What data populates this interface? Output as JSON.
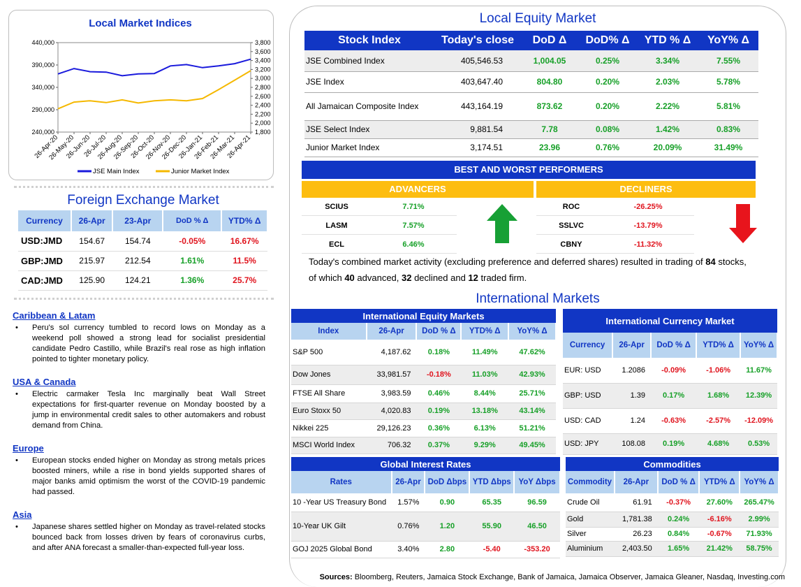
{
  "chart_data": {
    "type": "line",
    "title": "Local Market Indices",
    "x_ticks": [
      "26-Apr-20",
      "26-May-20",
      "26-Jun-20",
      "26-Jul-20",
      "26-Aug-20",
      "26-Sep-20",
      "26-Oct-20",
      "26-Nov-20",
      "26-Dec-20",
      "26-Jan-21",
      "26-Feb-21",
      "26-Mar-21",
      "26-Apr-21"
    ],
    "y_left_ticks": [
      "440,000",
      "390,000",
      "340,000",
      "290,000",
      "240,000"
    ],
    "y_left_range": [
      240000,
      440000
    ],
    "y_right_ticks": [
      "3,800",
      "3,600",
      "3,400",
      "3,200",
      "3,000",
      "2,800",
      "2,600",
      "2,400",
      "2,200",
      "2,000",
      "1,800"
    ],
    "y_right_range": [
      1800,
      3800
    ],
    "legend_position": "bottom",
    "series": [
      {
        "name": "JSE Main Index",
        "axis": "left",
        "color": "#1a1adc",
        "values": [
          370000,
          382000,
          375000,
          374000,
          366000,
          370000,
          371000,
          388000,
          391000,
          384000,
          388000,
          393000,
          403000
        ]
      },
      {
        "name": "Junior Market Index",
        "axis": "right",
        "color": "#f5b800",
        "values": [
          2320,
          2470,
          2500,
          2460,
          2520,
          2450,
          2500,
          2520,
          2500,
          2550,
          2750,
          2960,
          3174
        ]
      }
    ]
  },
  "fx": {
    "title": "Foreign Exchange Market",
    "headers": [
      "Currency",
      "26-Apr",
      "23-Apr",
      "DoD % Δ",
      "YTD% Δ"
    ],
    "rows": [
      {
        "cur": "USD:JMD",
        "a": "154.67",
        "b": "154.74",
        "dod": "-0.05%",
        "ytd": "16.67%"
      },
      {
        "cur": "GBP:JMD",
        "a": "215.97",
        "b": "212.54",
        "dod": "1.61%",
        "ytd": "11.5%"
      },
      {
        "cur": "CAD:JMD",
        "a": "125.90",
        "b": "124.21",
        "dod": "1.36%",
        "ytd": "25.7%"
      }
    ]
  },
  "news": [
    {
      "heading": "Caribbean & Latam",
      "bullet": "•",
      "text": "Peru's sol currency tumbled to record lows on Monday as a weekend poll showed a strong lead for socialist presidential candidate Pedro Castillo, while Brazil's real rose as high inflation pointed to tighter monetary policy."
    },
    {
      "heading": "USA & Canada",
      "bullet": "•",
      "text": "Electric carmaker Tesla Inc marginally beat Wall Street expectations for first-quarter revenue on Monday boosted by a jump in environmental credit sales to other automakers and robust demand from China."
    },
    {
      "heading": "Europe",
      "bullet": "•",
      "text": "European stocks ended higher on Monday as strong metals prices boosted miners, while a rise in bond yields supported shares of major banks amid optimism the worst of the COVID-19 pandemic had passed."
    },
    {
      "heading": "Asia",
      "bullet": "•",
      "text": "Japanese shares settled higher on Monday as travel-related stocks bounced back from losses driven by fears of coronavirus curbs, and after ANA forecast a smaller-than-expected full-year loss."
    }
  ],
  "local_equity": {
    "title": "Local Equity Market",
    "headers": [
      "Stock Index",
      "Today's close",
      "DoD  Δ",
      "DoD% Δ",
      "YTD % Δ",
      "YoY% Δ"
    ],
    "rows": [
      {
        "name": "JSE Combined Index",
        "close": "405,546.53",
        "dod": "1,004.05",
        "dodp": "0.25%",
        "ytd": "3.34%",
        "yoy": "7.55%"
      },
      {
        "name": "JSE Index",
        "close": "403,647.40",
        "dod": "804.80",
        "dodp": "0.20%",
        "ytd": "2.03%",
        "yoy": "5.78%"
      },
      {
        "name": "All Jamaican Composite Index",
        "close": "443,164.19",
        "dod": "873.62",
        "dodp": "0.20%",
        "ytd": "2.22%",
        "yoy": "5.81%"
      },
      {
        "name": "JSE Select Index",
        "close": "9,881.54",
        "dod": "7.78",
        "dodp": "0.08%",
        "ytd": "1.42%",
        "yoy": "0.83%"
      },
      {
        "name": "Junior Market Index",
        "close": "3,174.51",
        "dod": "23.96",
        "dodp": "0.76%",
        "ytd": "20.09%",
        "yoy": "31.49%"
      }
    ]
  },
  "performers": {
    "title": "BEST AND WORST PERFORMERS",
    "advancers_label": "ADVANCERS",
    "decliners_label": "DECLINERS",
    "advancers": [
      {
        "sym": "SCIUS",
        "pct": "7.71%"
      },
      {
        "sym": "LASM",
        "pct": "7.57%"
      },
      {
        "sym": "ECL",
        "pct": "6.46%"
      }
    ],
    "decliners": [
      {
        "sym": "ROC",
        "pct": "-26.25%"
      },
      {
        "sym": "SSLVC",
        "pct": "-13.79%"
      },
      {
        "sym": "CBNY",
        "pct": "-11.32%"
      }
    ],
    "up_color": "#17a035",
    "down_color": "#e8141c"
  },
  "summary": {
    "t1": "Today's combined market activity (excluding preference and deferred shares) resulted in trading of ",
    "n1": "84",
    "t2": " stocks, of which ",
    "n2": "40",
    "t3": " advanced, ",
    "n3": "32",
    "t4": " declined and ",
    "n4": "12",
    "t5": " traded firm."
  },
  "intl_title": "International Markets",
  "intl_equity": {
    "title": "International Equity Markets",
    "headers": [
      "Index",
      "26-Apr",
      "DoD % Δ",
      "YTD% Δ",
      "YoY% Δ"
    ],
    "rows": [
      {
        "name": "S&P 500",
        "v": "4,187.62",
        "dod": "0.18%",
        "ytd": "11.49%",
        "yoy": "47.62%"
      },
      {
        "name": "Dow Jones",
        "v": "33,981.57",
        "dod": "-0.18%",
        "ytd": "11.03%",
        "yoy": "42.93%"
      },
      {
        "name": "FTSE All Share",
        "v": "3,983.59",
        "dod": "0.46%",
        "ytd": "8.44%",
        "yoy": "25.71%"
      },
      {
        "name": "Euro Stoxx 50",
        "v": "4,020.83",
        "dod": "0.19%",
        "ytd": "13.18%",
        "yoy": "43.14%"
      },
      {
        "name": "Nikkei 225",
        "v": "29,126.23",
        "dod": "0.36%",
        "ytd": "6.13%",
        "yoy": "51.21%"
      },
      {
        "name": "MSCI World Index",
        "v": "706.32",
        "dod": "0.37%",
        "ytd": "9.29%",
        "yoy": "49.45%"
      }
    ]
  },
  "intl_currency": {
    "title": "International Currency Market",
    "headers": [
      "Currency",
      "26-Apr",
      "DoD % Δ",
      "YTD% Δ",
      "YoY% Δ"
    ],
    "rows": [
      {
        "name": "EUR: USD",
        "v": "1.2086",
        "dod": "-0.09%",
        "ytd": "-1.06%",
        "yoy": "11.67%"
      },
      {
        "name": "GBP: USD",
        "v": "1.39",
        "dod": "0.17%",
        "ytd": "1.68%",
        "yoy": "12.39%"
      },
      {
        "name": "USD: CAD",
        "v": "1.24",
        "dod": "-0.63%",
        "ytd": "-2.57%",
        "yoy": "-12.09%"
      },
      {
        "name": "USD: JPY",
        "v": "108.08",
        "dod": "0.19%",
        "ytd": "4.68%",
        "yoy": "0.53%"
      }
    ]
  },
  "rates": {
    "title": "Global Interest Rates",
    "headers": [
      "Rates",
      "26-Apr",
      "DoD Δbps",
      "YTD Δbps",
      "YoY Δbps"
    ],
    "rows": [
      {
        "name": "10 -Year US Treasury Bond",
        "v": "1.57%",
        "dod": "0.90",
        "ytd": "65.35",
        "yoy": "96.59"
      },
      {
        "name": "10-Year UK Gilt",
        "v": "0.76%",
        "dod": "1.20",
        "ytd": "55.90",
        "yoy": "46.50"
      },
      {
        "name": "GOJ 2025 Global Bond",
        "v": "3.40%",
        "dod": "2.80",
        "ytd": "-5.40",
        "yoy": "-353.20"
      }
    ]
  },
  "commodities": {
    "title": "Commodities",
    "headers": [
      "Commodity",
      "26-Apr",
      "DoD % Δ",
      "YTD% Δ",
      "YoY% Δ"
    ],
    "rows": [
      {
        "name": "Crude Oil",
        "v": "61.91",
        "dod": "-0.37%",
        "ytd": "27.60%",
        "yoy": "265.47%"
      },
      {
        "name": "Gold",
        "v": "1,781.38",
        "dod": "0.24%",
        "ytd": "-6.16%",
        "yoy": "2.99%"
      },
      {
        "name": "Silver",
        "v": "26.23",
        "dod": "0.84%",
        "ytd": "-0.67%",
        "yoy": "71.93%"
      },
      {
        "name": "Aluminium",
        "v": "2,403.50",
        "dod": "1.65%",
        "ytd": "21.42%",
        "yoy": "58.75%"
      }
    ]
  },
  "sources": {
    "label": "Sources:",
    "text": " Bloomberg, Reuters, Jamaica Stock Exchange, Bank of Jamaica, Jamaica Observer, Jamaica Gleaner, Nasdaq, Investing.com"
  }
}
